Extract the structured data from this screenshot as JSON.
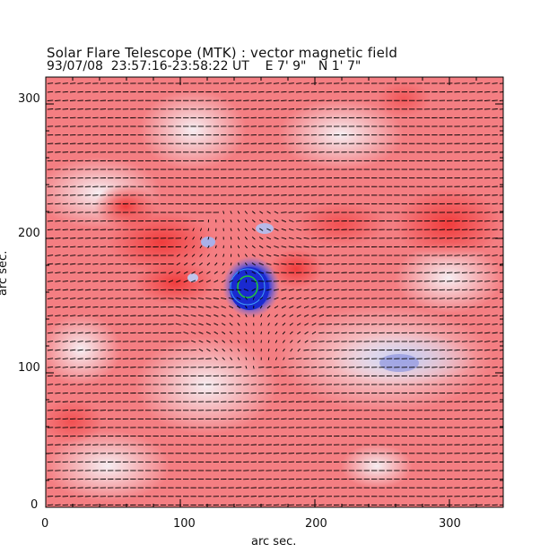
{
  "figure": {
    "title": "Solar Flare Telescope (MTK) : vector magnetic field",
    "subtitle": "93/07/08  23:57:16-23:58:22 UT    E 7' 9\"   N 1' 7\"",
    "x_axis_label": "arc sec.",
    "y_axis_label": "arc sec.",
    "x_ticks": [
      "0",
      "100",
      "200",
      "300"
    ],
    "y_ticks": [
      "0",
      "100",
      "200",
      "300"
    ]
  },
  "colors": {
    "positive_field": "#f24a4a",
    "negative_field": "#2a3bd6",
    "background_weak": "#f4e8ec",
    "vector_line": "#000000",
    "contour_green": "#22c33a"
  }
}
